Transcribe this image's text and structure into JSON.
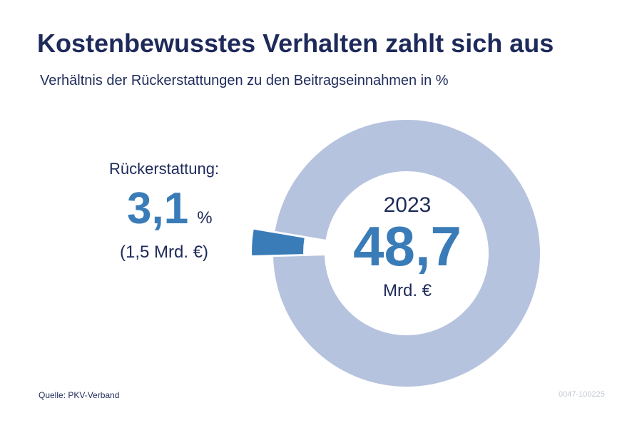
{
  "title": "Kostenbewusstes Verhalten zahlt sich aus",
  "subtitle": "Verhältnis der Rückerstattungen zu den Beitragseinnahmen in %",
  "refund": {
    "label": "Rückerstattung:",
    "share": "3,1",
    "unit": "%",
    "amount": "(1,5 Mrd. €)"
  },
  "center": {
    "year": "2023",
    "value": "48,7",
    "unit": "Mrd. €"
  },
  "source": "Quelle: PKV-Verband",
  "code": "0047-100225",
  "colors": {
    "ring": "#b6c3de",
    "highlight": "#3a7cb8",
    "text": "#1e2a5a"
  },
  "chart_data": {
    "type": "pie",
    "title": "Kostenbewusstes Verhalten zahlt sich aus",
    "subtitle": "Verhältnis der Rückerstattungen zu den Beitragseinnahmen in %",
    "categories": [
      "Rückerstattung",
      ""
    ],
    "values": [
      3.1,
      96.9
    ],
    "total": 48.7,
    "total_unit": "Mrd. €",
    "year": "2023",
    "highlight_index": 0,
    "highlight_amount": 1.5,
    "highlight_amount_unit": "Mrd. €",
    "style": "donut",
    "highlight_exploded": true
  }
}
